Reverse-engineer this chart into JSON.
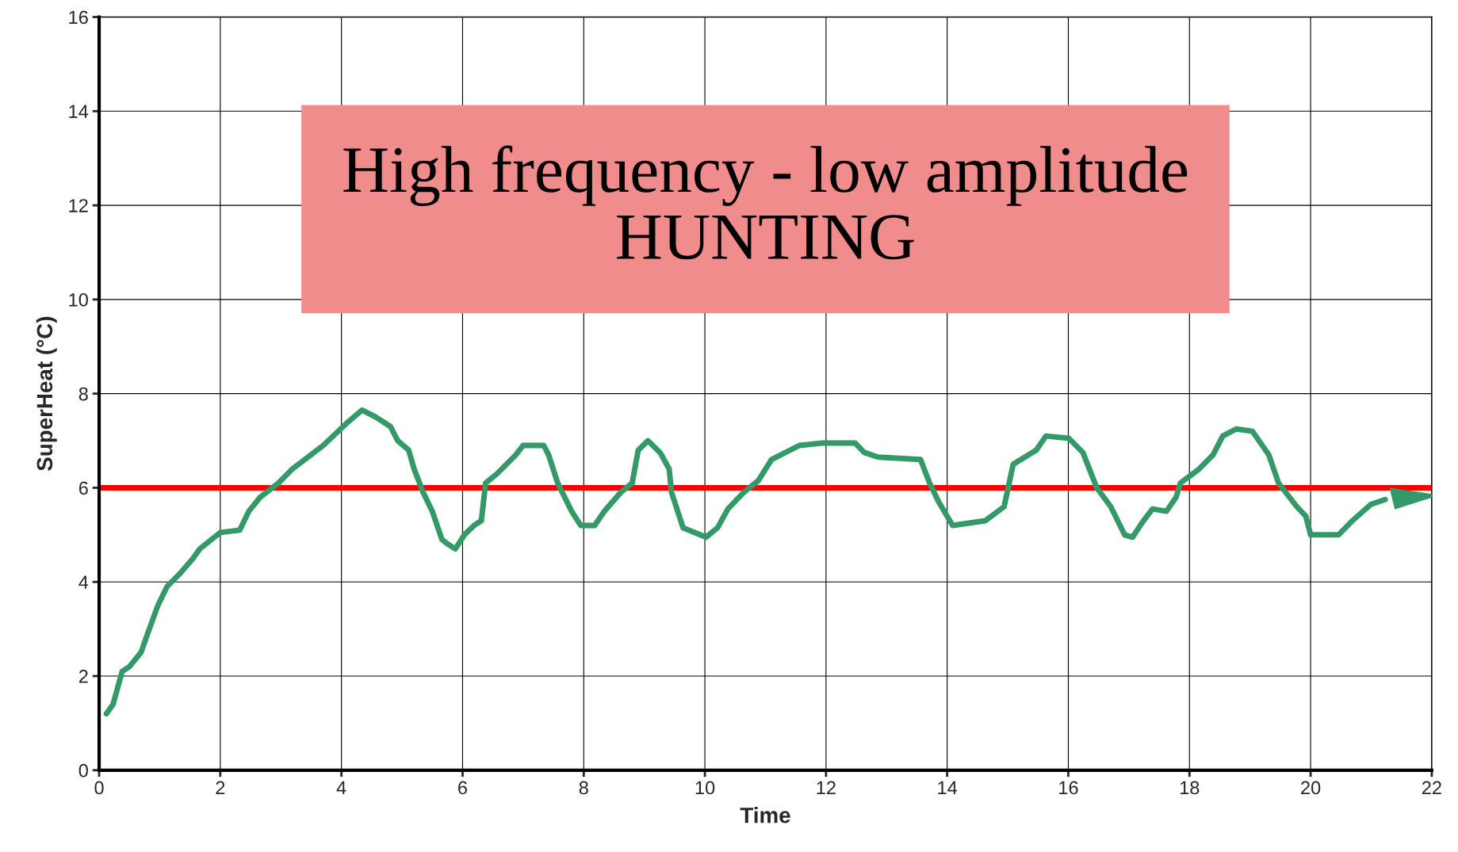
{
  "chart_data": {
    "type": "line",
    "xlabel": "Time",
    "ylabel": "SuperHeat (°C)",
    "xlim": [
      0,
      22
    ],
    "xticks": [
      0,
      2,
      4,
      6,
      8,
      10,
      12,
      14,
      16,
      18,
      20,
      22
    ],
    "ylim": [
      0,
      16
    ],
    "yticks": [
      0,
      2,
      4,
      6,
      8,
      10,
      12,
      14,
      16
    ],
    "grid": true,
    "marker": "none",
    "line_style": "solid",
    "series": [
      {
        "color": "#339966",
        "x": [
          0.12,
          0.23,
          0.38,
          0.5,
          0.69,
          0.8,
          0.97,
          1.12,
          1.35,
          1.55,
          1.66,
          2.0,
          2.32,
          2.47,
          2.66,
          2.96,
          3.19,
          3.7,
          4.11,
          4.34,
          4.57,
          4.81,
          4.93,
          5.11,
          5.2,
          5.35,
          5.5,
          5.66,
          5.76,
          5.88,
          6.03,
          6.19,
          6.31,
          6.38,
          6.57,
          6.88,
          7.0,
          7.34,
          7.42,
          7.57,
          7.8,
          7.95,
          8.18,
          8.34,
          8.61,
          8.8,
          8.9,
          9.06,
          9.26,
          9.41,
          9.45,
          9.64,
          10.02,
          10.21,
          10.38,
          10.64,
          10.88,
          11.1,
          11.56,
          11.94,
          12.48,
          12.63,
          12.86,
          13.56,
          13.71,
          13.86,
          14.09,
          14.63,
          14.94,
          15.09,
          15.47,
          15.63,
          16.01,
          16.24,
          16.47,
          16.7,
          16.93,
          17.06,
          17.24,
          17.39,
          17.62,
          17.78,
          17.85,
          18.16,
          18.39,
          18.55,
          18.77,
          19.04,
          19.31,
          19.47,
          19.77,
          19.92,
          20.0,
          20.46,
          20.69,
          21.0,
          21.23
        ],
        "values": [
          1.2,
          1.4,
          2.1,
          2.2,
          2.5,
          2.9,
          3.5,
          3.9,
          4.2,
          4.5,
          4.7,
          5.05,
          5.1,
          5.5,
          5.8,
          6.1,
          6.4,
          6.9,
          7.4,
          7.65,
          7.5,
          7.3,
          7.0,
          6.8,
          6.4,
          5.9,
          5.5,
          4.9,
          4.8,
          4.7,
          5.0,
          5.2,
          5.3,
          6.1,
          6.3,
          6.7,
          6.9,
          6.9,
          6.7,
          6.1,
          5.5,
          5.2,
          5.2,
          5.5,
          5.9,
          6.1,
          6.8,
          7.0,
          6.75,
          6.4,
          5.9,
          5.15,
          4.95,
          5.15,
          5.55,
          5.9,
          6.15,
          6.6,
          6.9,
          6.95,
          6.95,
          6.75,
          6.65,
          6.6,
          6.1,
          5.7,
          5.2,
          5.3,
          5.6,
          6.5,
          6.8,
          7.1,
          7.05,
          6.75,
          6.0,
          5.6,
          5.0,
          4.95,
          5.3,
          5.55,
          5.5,
          5.8,
          6.1,
          6.4,
          6.7,
          7.1,
          7.25,
          7.2,
          6.7,
          6.1,
          5.6,
          5.4,
          5.0,
          5.0,
          5.3,
          5.65,
          5.75
        ]
      }
    ],
    "ref_lines": [
      {
        "axis": "y",
        "value": 6,
        "color": "#ff0000",
        "line_style": "solid"
      }
    ],
    "annotations": [
      "High frequency - low amplitude\nHUNTING"
    ]
  }
}
